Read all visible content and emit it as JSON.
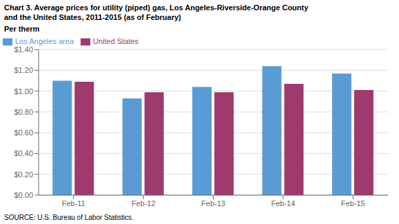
{
  "chart_data": {
    "type": "bar",
    "title": "Chart 3. Average prices for utility (piped) gas, Los Angeles-Riverside-Orange County",
    "subtitle": "and the United States, 2011-2015  (as of February)",
    "y_label": "Per therm",
    "annotations": [
      "SOURCE: U.S. Bureau of Labor Statistics."
    ],
    "categories": [
      "Feb-11",
      "Feb-12",
      "Feb-13",
      "Feb-14",
      "Feb-15"
    ],
    "series": [
      {
        "name": "Los Angeles area",
        "color": "#5B9BD5",
        "values": [
          1.1,
          0.93,
          1.04,
          1.24,
          1.17
        ]
      },
      {
        "name": "United States",
        "color": "#9E3A6E",
        "values": [
          1.09,
          0.99,
          0.99,
          1.07,
          1.01
        ]
      }
    ],
    "ylim": [
      0.0,
      1.4
    ],
    "yticks": [
      {
        "value": 0.0,
        "label": "$0.00"
      },
      {
        "value": 0.2,
        "label": "$0.20"
      },
      {
        "value": 0.4,
        "label": "$0.40"
      },
      {
        "value": 0.6,
        "label": "$0.60"
      },
      {
        "value": 0.8,
        "label": "$0.80"
      },
      {
        "value": 1.0,
        "label": "$1.00"
      },
      {
        "value": 1.2,
        "label": "$1.20"
      },
      {
        "value": 1.4,
        "label": "$1.40"
      }
    ],
    "grid": true,
    "legend": "upper left"
  }
}
